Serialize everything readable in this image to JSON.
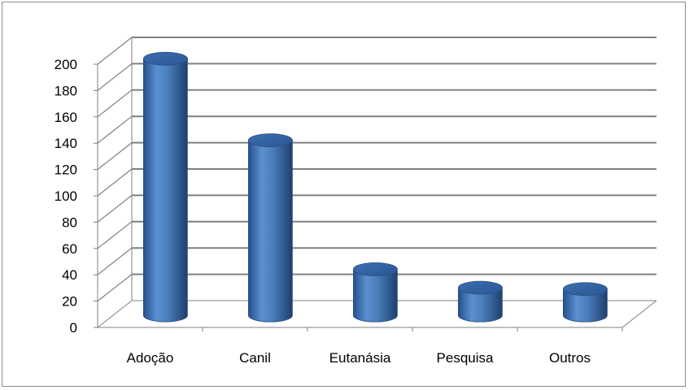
{
  "chart_data": {
    "type": "bar",
    "title": "",
    "xlabel": "",
    "ylabel": "",
    "categories": [
      "Adoção",
      "Canil",
      "Eutanásia",
      "Pesquisa",
      "Outros"
    ],
    "values": [
      195,
      133,
      35,
      21,
      20
    ],
    "ylim": [
      0,
      200
    ],
    "yticks": [
      0,
      20,
      40,
      60,
      80,
      100,
      120,
      140,
      160,
      180,
      200
    ],
    "grid": true,
    "legend": "none",
    "style": "3d-cylinder",
    "colors": {
      "bar": "#4a7ebb",
      "bar_dark": "#24497a",
      "bar_light": "#8db3e2",
      "grid": "#808080"
    }
  }
}
